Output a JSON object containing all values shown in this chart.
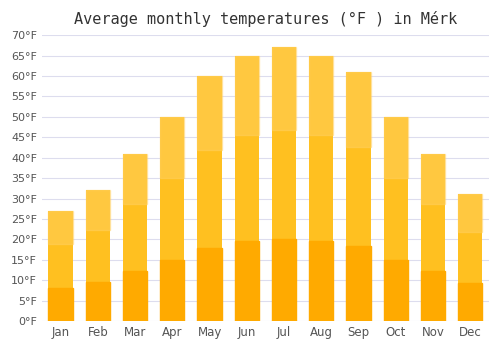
{
  "title": "Average monthly temperatures (°F ) in Mérk",
  "months": [
    "Jan",
    "Feb",
    "Mar",
    "Apr",
    "May",
    "Jun",
    "Jul",
    "Aug",
    "Sep",
    "Oct",
    "Nov",
    "Dec"
  ],
  "values": [
    27,
    32,
    41,
    50,
    60,
    65,
    67,
    65,
    61,
    50,
    41,
    31
  ],
  "ylim": [
    0,
    70
  ],
  "yticks": [
    0,
    5,
    10,
    15,
    20,
    25,
    30,
    35,
    40,
    45,
    50,
    55,
    60,
    65,
    70
  ],
  "bar_color_top": "#FFC020",
  "bar_color_bottom": "#FFAA00",
  "background_color": "#ffffff",
  "grid_color": "#ddddee",
  "title_fontsize": 11
}
